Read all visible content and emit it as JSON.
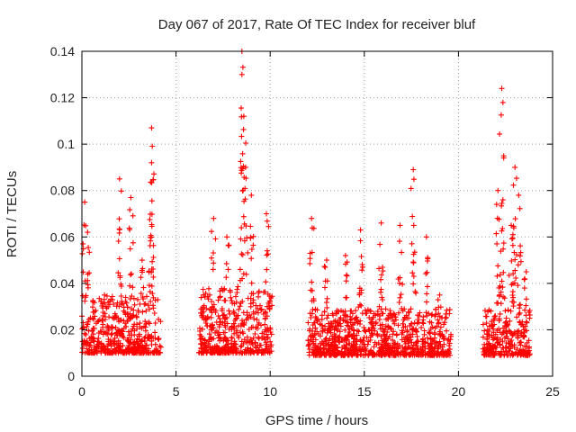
{
  "chart_data": {
    "type": "scatter",
    "title": "Day 067 of 2017, Rate Of TEC Index for receiver bluf",
    "xlabel": "GPS time / hours",
    "ylabel": "ROTI / TECUs",
    "xlim": [
      0,
      25
    ],
    "ylim": [
      0,
      0.14
    ],
    "x_ticks": [
      0,
      5,
      10,
      15,
      20,
      25
    ],
    "x_tick_labels": [
      "0",
      "5",
      "10",
      "15",
      "20",
      "25"
    ],
    "y_ticks": [
      0,
      0.02,
      0.04,
      0.06,
      0.08,
      0.1,
      0.12,
      0.14
    ],
    "y_tick_labels": [
      "0",
      "0.02",
      "0.04",
      "0.06",
      "0.08",
      "0.1",
      "0.12",
      "0.14"
    ],
    "grid": true,
    "marker": "plus",
    "color": "#ff0000",
    "segments": [
      {
        "start": 0.0,
        "end": 4.2,
        "base": 0.008,
        "spread": 0.025,
        "peaks": [
          [
            0.15,
            0.075
          ],
          [
            0.3,
            0.062
          ],
          [
            1.2,
            0.035
          ],
          [
            2.0,
            0.085
          ],
          [
            2.6,
            0.077
          ],
          [
            3.2,
            0.05
          ],
          [
            3.7,
            0.107
          ],
          [
            3.7,
            0.092
          ]
        ]
      },
      {
        "start": 6.2,
        "end": 10.1,
        "base": 0.008,
        "spread": 0.028,
        "peaks": [
          [
            7.0,
            0.068
          ],
          [
            7.7,
            0.06
          ],
          [
            8.5,
            0.14
          ],
          [
            8.5,
            0.13
          ],
          [
            8.6,
            0.112
          ],
          [
            8.7,
            0.09
          ],
          [
            9.0,
            0.078
          ],
          [
            9.8,
            0.07
          ]
        ]
      },
      {
        "start": 12.0,
        "end": 19.6,
        "base": 0.007,
        "spread": 0.02,
        "peaks": [
          [
            12.2,
            0.068
          ],
          [
            13.0,
            0.05
          ],
          [
            14.0,
            0.052
          ],
          [
            14.8,
            0.063
          ],
          [
            15.9,
            0.066
          ],
          [
            16.9,
            0.065
          ],
          [
            17.6,
            0.089
          ],
          [
            18.3,
            0.06
          ],
          [
            19.0,
            0.035
          ]
        ]
      },
      {
        "start": 21.3,
        "end": 23.8,
        "base": 0.007,
        "spread": 0.02,
        "peaks": [
          [
            22.1,
            0.08
          ],
          [
            22.3,
            0.124
          ],
          [
            22.8,
            0.065
          ],
          [
            23.0,
            0.09
          ],
          [
            23.2,
            0.078
          ],
          [
            23.6,
            0.045
          ]
        ]
      }
    ]
  }
}
